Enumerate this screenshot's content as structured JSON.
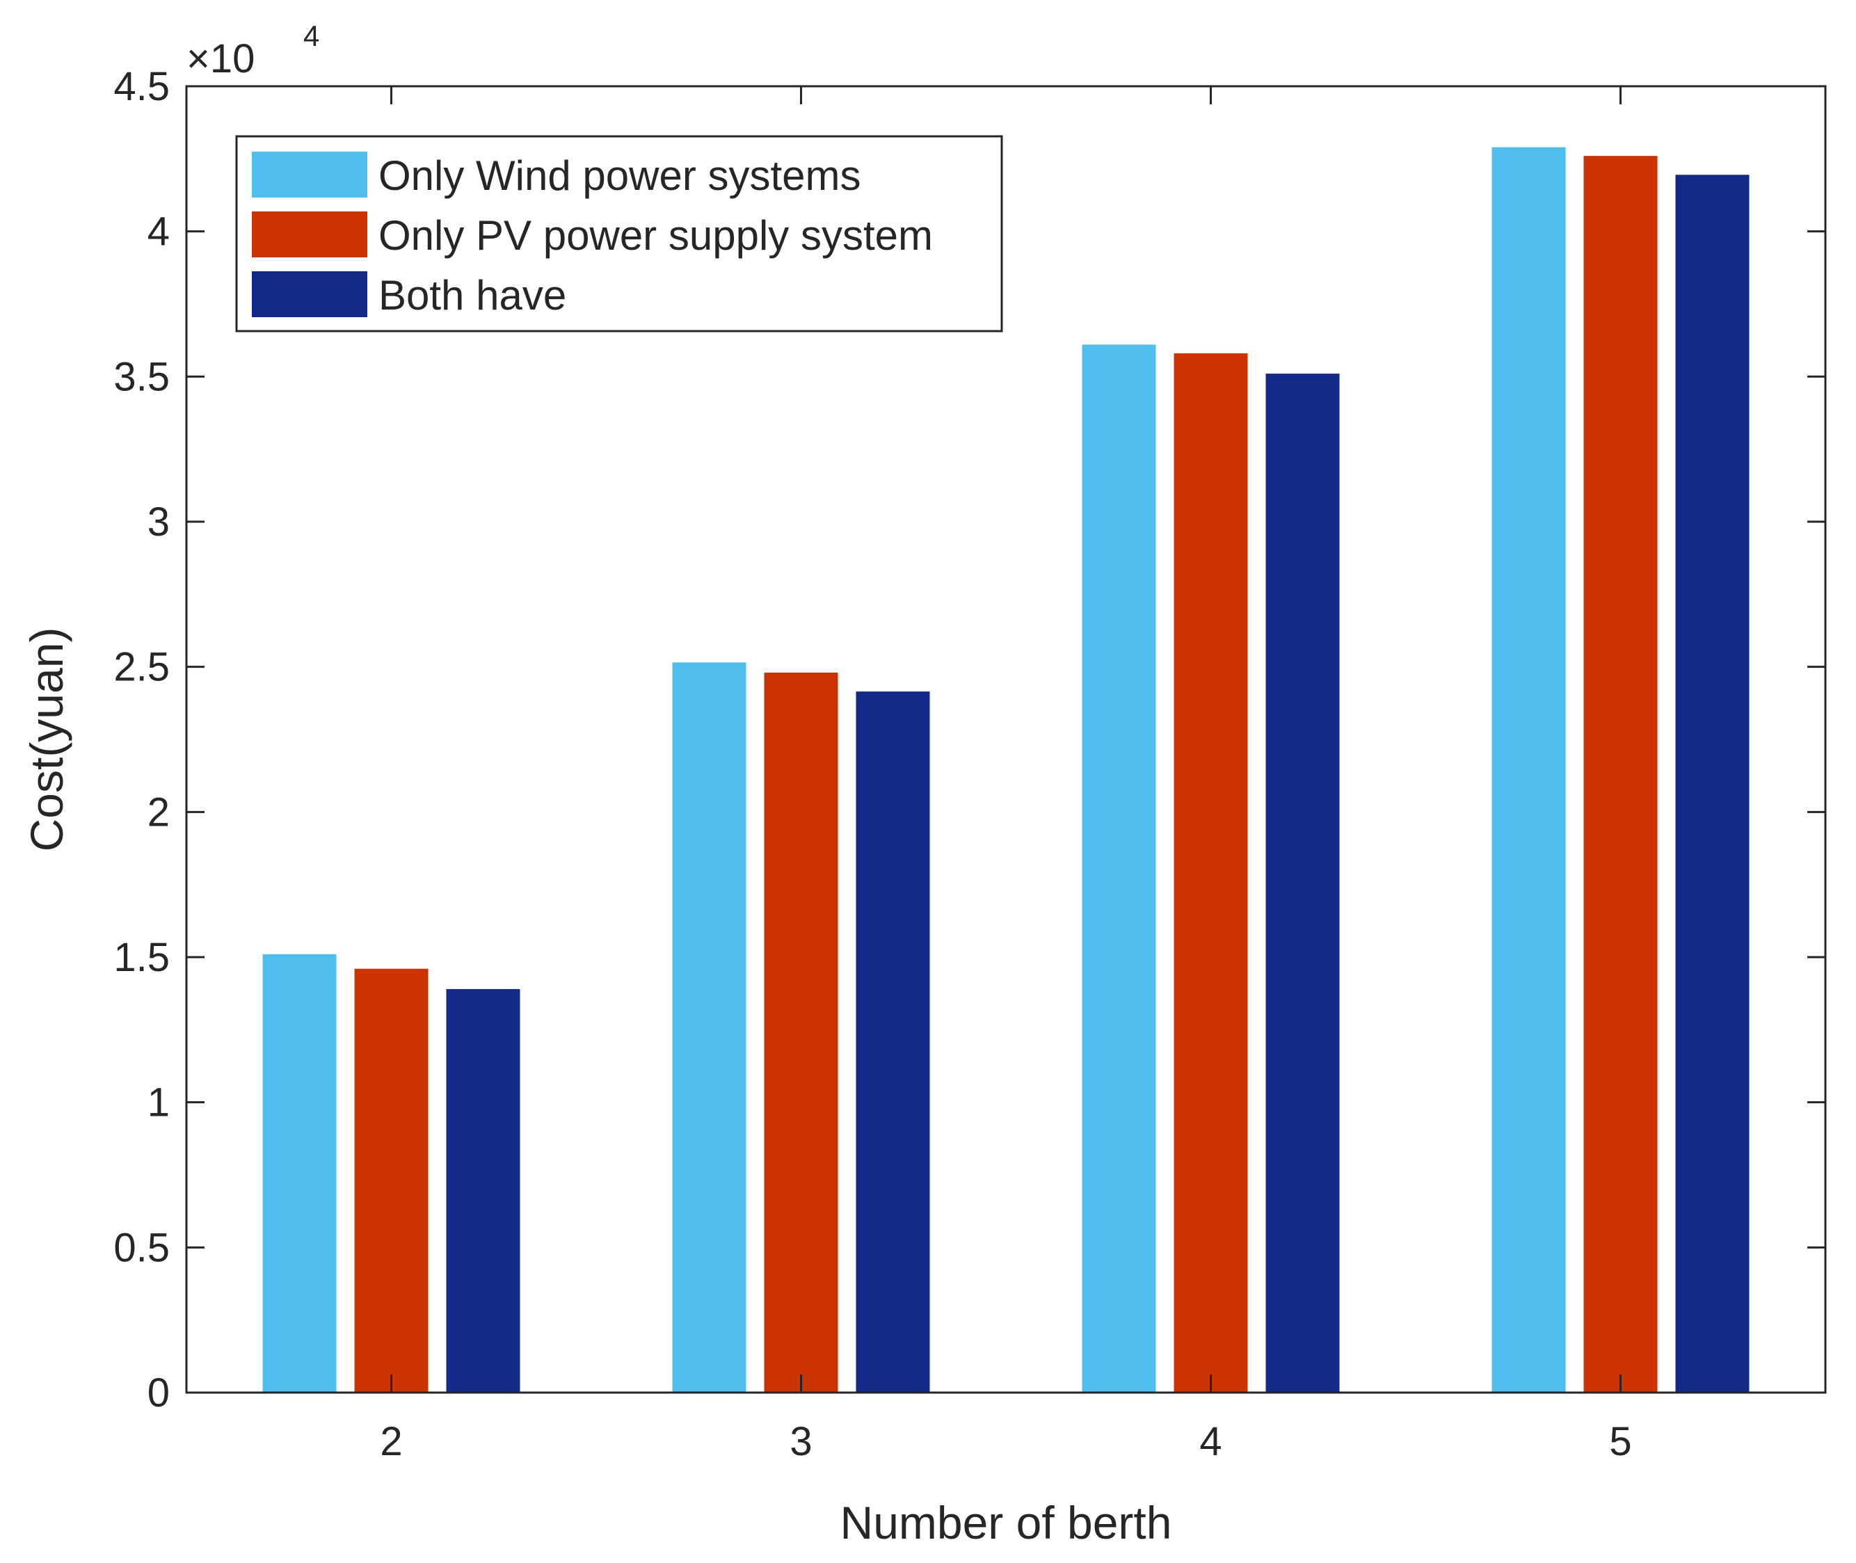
{
  "chart_data": {
    "type": "bar",
    "title": "",
    "xlabel": "Number of berth",
    "ylabel": "Cost(yuan)",
    "y_multiplier_label": "×10",
    "y_multiplier_exponent": "4",
    "categories": [
      "2",
      "3",
      "4",
      "5"
    ],
    "series": [
      {
        "name": "Only Wind power systems",
        "color": "#4DBEEE",
        "values": [
          15100,
          25150,
          36100,
          42900
        ]
      },
      {
        "name": "Only PV power supply system",
        "color": "#CC3300",
        "values": [
          14600,
          24800,
          35800,
          42600
        ]
      },
      {
        "name": "Both have",
        "color": "#142A8A",
        "values": [
          13900,
          24150,
          35100,
          41950
        ]
      }
    ],
    "ylim": [
      0,
      45000
    ],
    "yticks": [
      0,
      5000,
      10000,
      15000,
      20000,
      25000,
      30000,
      35000,
      40000,
      45000
    ],
    "ytick_labels": [
      "0",
      "0.5",
      "1",
      "1.5",
      "2",
      "2.5",
      "3",
      "3.5",
      "4",
      "4.5"
    ],
    "grid": false,
    "legend_position": "top-left"
  }
}
